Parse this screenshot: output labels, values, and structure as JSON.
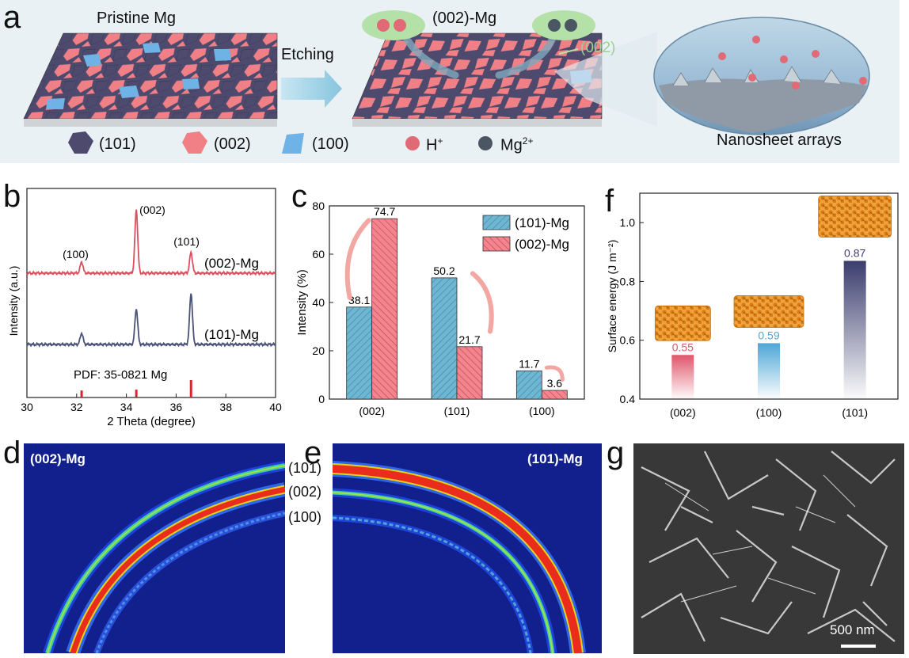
{
  "panel_a": {
    "label": "a",
    "pristine_label": "Pristine Mg",
    "etching_label": "Etching",
    "etched_label": "(002)-Mg",
    "facet_callout": "(002)",
    "zoom_label": "Nanosheet arrays",
    "legend": [
      {
        "label": "(101)",
        "color": "#4d4a6e",
        "icon": "pentagon-icon"
      },
      {
        "label": "(002)",
        "color": "#f07f86",
        "icon": "pentagon-icon"
      },
      {
        "label": "(100)",
        "color": "#6fb3e6",
        "icon": "quad-icon"
      },
      {
        "label": "H",
        "sup": "+",
        "color": "#e26d78",
        "icon": "sphere-icon"
      },
      {
        "label": "Mg",
        "sup": "2+",
        "color": "#4b5663",
        "icon": "sphere-icon"
      }
    ]
  },
  "panel_b": {
    "label": "b",
    "series_labels": [
      "(002)-Mg",
      "(101)-Mg"
    ],
    "peak_labels": [
      "(100)",
      "(002)",
      "(101)"
    ],
    "pdf_label": "PDF: 35-0821 Mg"
  },
  "panel_c": {
    "label": "c"
  },
  "panel_d": {
    "label": "d",
    "title": "(002)-Mg"
  },
  "panel_e": {
    "label": "e",
    "title": "(101)-Mg",
    "ring_labels": [
      "(101)",
      "(002)",
      "(100)"
    ]
  },
  "panel_f": {
    "label": "f"
  },
  "panel_g": {
    "label": "g",
    "scale_bar": "500 nm"
  },
  "chart_data": [
    {
      "id": "b",
      "type": "line",
      "title": "",
      "xlabel": "2 Theta (degree)",
      "ylabel": "Intensity (a.u.)",
      "xlim": [
        30,
        40
      ],
      "xticks": [
        "30",
        "32",
        "34",
        "36",
        "38",
        "40"
      ],
      "series": [
        {
          "name": "(002)-Mg",
          "color": "#d9515e",
          "peaks": [
            {
              "x": 32.2,
              "h": 0.18
            },
            {
              "x": 34.4,
              "h": 1.0
            },
            {
              "x": 36.6,
              "h": 0.33
            }
          ]
        },
        {
          "name": "(101)-Mg",
          "color": "#4a5278",
          "peaks": [
            {
              "x": 32.2,
              "h": 0.18
            },
            {
              "x": 34.4,
              "h": 0.56
            },
            {
              "x": 36.6,
              "h": 0.81
            }
          ]
        }
      ],
      "reference": {
        "name": "PDF: 35-0821 Mg",
        "color": "#d8262e",
        "lines": [
          {
            "x": 32.2,
            "h": 0.4
          },
          {
            "x": 34.4,
            "h": 0.45
          },
          {
            "x": 36.6,
            "h": 1.0
          }
        ]
      }
    },
    {
      "id": "c",
      "type": "bar",
      "title": "",
      "xlabel": "",
      "ylabel": "Intensity (%)",
      "ylim": [
        0,
        80
      ],
      "yticks": [
        "0",
        "20",
        "40",
        "60",
        "80"
      ],
      "categories": [
        "(002)",
        "(101)",
        "(100)"
      ],
      "series": [
        {
          "name": "(101)-Mg",
          "color": "#6fb6d2",
          "values": [
            38.1,
            50.2,
            11.7
          ],
          "labels": [
            "38.1",
            "50.2",
            "11.7"
          ]
        },
        {
          "name": "(002)-Mg",
          "color": "#f4848e",
          "values": [
            74.7,
            21.7,
            3.6
          ],
          "labels": [
            "74.7",
            "21.7",
            "3.6"
          ]
        }
      ]
    },
    {
      "id": "f",
      "type": "bar",
      "title": "",
      "xlabel": "",
      "ylabel": "Surface energy (J m⁻²)",
      "ylim": [
        0.4,
        1.1
      ],
      "yticks": [
        "0.4",
        "0.6",
        "0.8",
        "1.0"
      ],
      "categories": [
        "(002)",
        "(100)",
        "(101)"
      ],
      "values": [
        0.55,
        0.59,
        0.87
      ],
      "labels": [
        "0.55",
        "0.59",
        "0.87"
      ],
      "colors": [
        "#e0566b",
        "#4ea6d6",
        "#3b3d6e"
      ]
    }
  ]
}
